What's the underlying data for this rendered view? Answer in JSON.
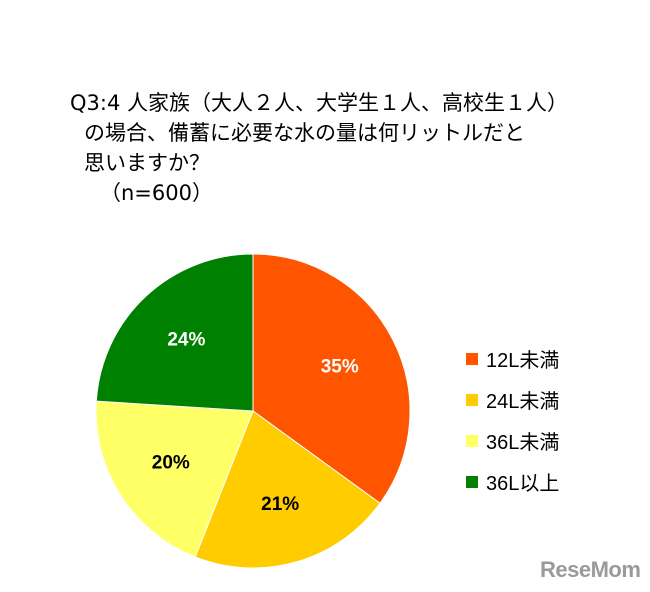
{
  "title_lines": [
    "Q3:4 人家族（大人２人、大学生１人、高校生１人）",
    "の場合、備蓄に必要な水の量は何リットルだと",
    "思いますか？",
    "（n=600）"
  ],
  "chart_data": {
    "type": "pie",
    "title": "Q3:4 人家族（大人２人、大学生１人、高校生１人）の場合、備蓄に必要な水の量は何リットルだと思いますか？（n=600）",
    "start": "12 o'clock",
    "direction": "clockwise",
    "legend_position": "right",
    "slices": [
      {
        "label": "12L未満",
        "value": 35,
        "display": "35%",
        "color": "#ff5500",
        "text_color": "#ffffff"
      },
      {
        "label": "24L未満",
        "value": 21,
        "display": "21%",
        "color": "#ffcc00",
        "text_color": "#000000"
      },
      {
        "label": "36L未満",
        "value": 20,
        "display": "20%",
        "color": "#ffff66",
        "text_color": "#000000"
      },
      {
        "label": "36L以上",
        "value": 24,
        "display": "24%",
        "color": "#008000",
        "text_color": "#ffffff"
      }
    ]
  },
  "logo": "ReseMom"
}
